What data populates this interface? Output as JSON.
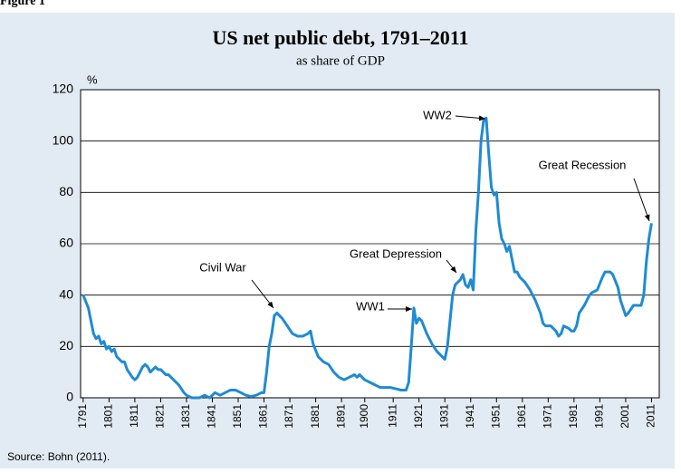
{
  "figure_label": "Figure 1",
  "chart_data": {
    "type": "line",
    "title": "US net public debt, 1791–2011",
    "subtitle": "as share of GDP",
    "y_label": "%",
    "source": "Source: Bohn (2011).",
    "annotations": [
      "WW2",
      "Great Recession",
      "Great Depression",
      "Civil War",
      "WW1"
    ],
    "xlim": [
      1790,
      2014
    ],
    "ylim": [
      0,
      120
    ],
    "yticks": [
      0,
      20,
      40,
      60,
      80,
      100,
      120
    ],
    "grid": true,
    "xticks": [
      1791,
      1801,
      1811,
      1821,
      1831,
      1841,
      1851,
      1861,
      1871,
      1881,
      1891,
      1900,
      1911,
      1921,
      1931,
      1941,
      1951,
      1961,
      1971,
      1981,
      1991,
      2001,
      2011
    ],
    "series": [
      {
        "name": "Net public debt",
        "color": "#1e8bd3",
        "x": [
          1791,
          1793,
          1795,
          1796,
          1797,
          1798,
          1799,
          1800,
          1801,
          1802,
          1803,
          1804,
          1806,
          1807,
          1808,
          1810,
          1811,
          1812,
          1814,
          1815,
          1816,
          1817,
          1818,
          1819,
          1820,
          1821,
          1822,
          1823,
          1824,
          1826,
          1828,
          1830,
          1831,
          1833,
          1836,
          1838,
          1840,
          1842,
          1844,
          1846,
          1848,
          1850,
          1852,
          1854,
          1856,
          1858,
          1860,
          1861,
          1862,
          1863,
          1864,
          1865,
          1866,
          1868,
          1870,
          1872,
          1874,
          1876,
          1878,
          1879,
          1880,
          1882,
          1884,
          1886,
          1888,
          1890,
          1892,
          1894,
          1896,
          1897,
          1898,
          1900,
          1902,
          1904,
          1906,
          1908,
          1910,
          1912,
          1914,
          1916,
          1917,
          1918,
          1919,
          1920,
          1921,
          1922,
          1924,
          1926,
          1928,
          1930,
          1931,
          1932,
          1933,
          1934,
          1935,
          1937,
          1938,
          1939,
          1940,
          1941,
          1942,
          1943,
          1944,
          1945,
          1946,
          1947,
          1948,
          1949,
          1950,
          1951,
          1952,
          1953,
          1954,
          1955,
          1956,
          1957,
          1958,
          1959,
          1960,
          1962,
          1964,
          1966,
          1968,
          1969,
          1970,
          1972,
          1974,
          1975,
          1976,
          1977,
          1979,
          1980,
          1981,
          1982,
          1983,
          1985,
          1987,
          1988,
          1990,
          1992,
          1993,
          1995,
          1996,
          1998,
          1999,
          2000,
          2001,
          2002,
          2004,
          2005,
          2007,
          2008,
          2009,
          2010,
          2011
        ],
        "values": [
          40,
          35,
          25,
          23,
          24,
          21,
          22,
          19,
          20,
          18,
          19,
          16,
          14,
          14,
          11,
          8,
          7,
          8,
          12,
          13,
          12,
          10,
          11,
          12,
          11,
          11,
          10,
          9,
          9,
          7,
          5,
          2,
          1,
          0,
          0,
          1,
          0,
          2,
          1,
          2,
          3,
          3,
          2,
          1,
          0.5,
          1,
          2,
          2,
          10,
          20,
          25,
          32,
          33,
          31,
          28,
          25,
          24,
          24,
          25,
          26,
          21,
          16,
          14,
          13,
          10,
          8,
          7,
          8,
          9,
          8,
          9,
          7,
          6,
          5,
          4,
          4,
          4,
          3.5,
          3,
          3,
          6,
          20,
          35,
          29,
          31,
          30,
          25,
          21,
          18,
          16,
          15,
          20,
          30,
          40,
          44,
          46,
          48,
          44,
          43,
          46,
          42,
          65,
          80,
          100,
          108,
          109,
          95,
          82,
          79,
          80,
          68,
          62,
          60,
          57,
          59,
          54,
          49,
          49,
          47,
          45,
          42,
          38,
          33,
          29,
          28,
          28,
          26,
          24,
          25,
          28,
          27,
          26,
          26,
          28,
          33,
          36,
          40,
          41,
          42,
          47,
          49,
          49,
          48,
          43,
          38,
          35,
          32,
          33,
          36,
          36,
          36,
          40,
          53,
          62,
          68
        ]
      }
    ]
  }
}
